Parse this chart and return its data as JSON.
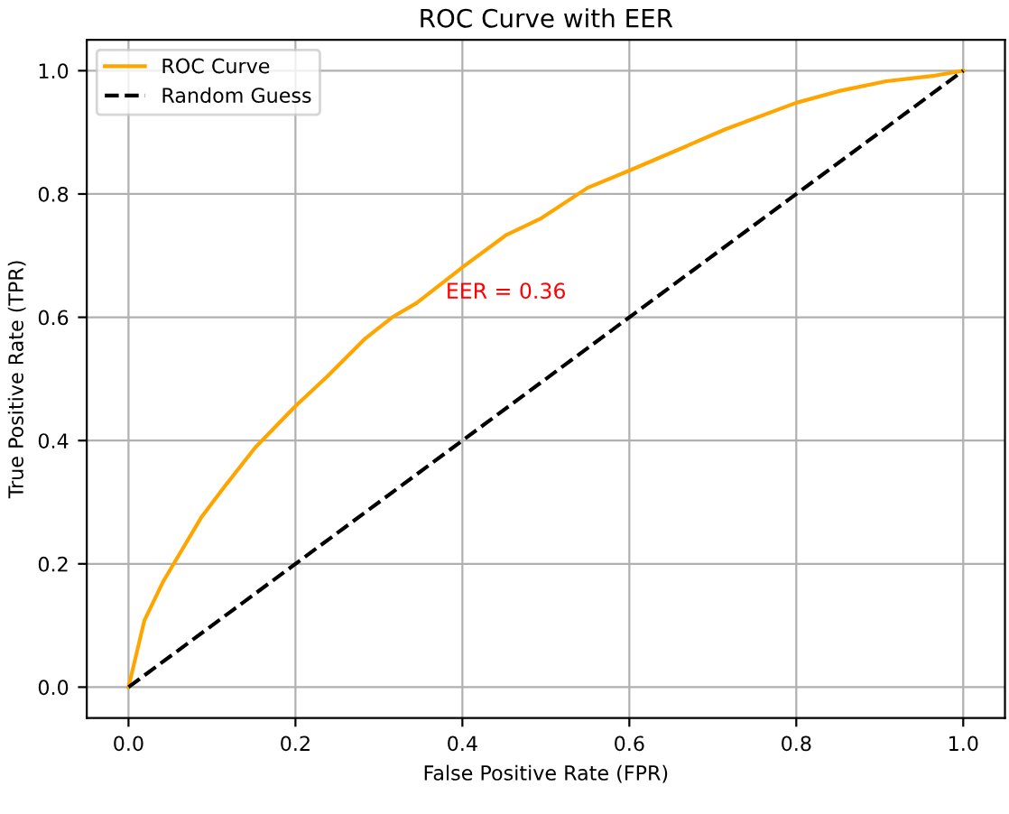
{
  "chart_data": {
    "type": "line",
    "title": "ROC Curve with EER",
    "xlabel": "False Positive Rate (FPR)",
    "ylabel": "True Positive Rate (TPR)",
    "series": [
      {
        "name": "ROC Curve",
        "color": "#ffa500",
        "line_style": "solid",
        "x": [
          0,
          0.019,
          0.041,
          0.062,
          0.087,
          0.116,
          0.152,
          0.2,
          0.238,
          0.284,
          0.316,
          0.345,
          0.399,
          0.452,
          0.495,
          0.55,
          0.6,
          0.657,
          0.715,
          0.8,
          0.851,
          0.908,
          0.966,
          1
        ],
        "values": [
          0,
          0.108,
          0.17,
          0.218,
          0.275,
          0.327,
          0.389,
          0.456,
          0.504,
          0.566,
          0.6,
          0.623,
          0.68,
          0.733,
          0.761,
          0.81,
          0.838,
          0.871,
          0.905,
          0.948,
          0.967,
          0.983,
          0.992,
          1
        ]
      },
      {
        "name": "Random Guess",
        "color": "#000000",
        "line_style": "dashed",
        "x": [
          0,
          1
        ],
        "values": [
          0,
          1
        ]
      }
    ],
    "annotations": [
      {
        "text": "EER = 0.36",
        "x": 0.38,
        "y": 0.64
      }
    ],
    "xlim": [
      -0.05,
      1.05
    ],
    "ylim": [
      -0.05,
      1.05
    ],
    "xticks": [
      {
        "value": 0,
        "label": "0.0"
      },
      0.2,
      0.4,
      0.6,
      0.8,
      {
        "value": 1,
        "label": "1.0"
      }
    ],
    "yticks": [
      {
        "value": 0,
        "label": "0.0"
      },
      0.2,
      0.4,
      0.6,
      0.8,
      {
        "value": 1,
        "label": "1.0"
      }
    ],
    "grid": true,
    "legend": "top left"
  }
}
